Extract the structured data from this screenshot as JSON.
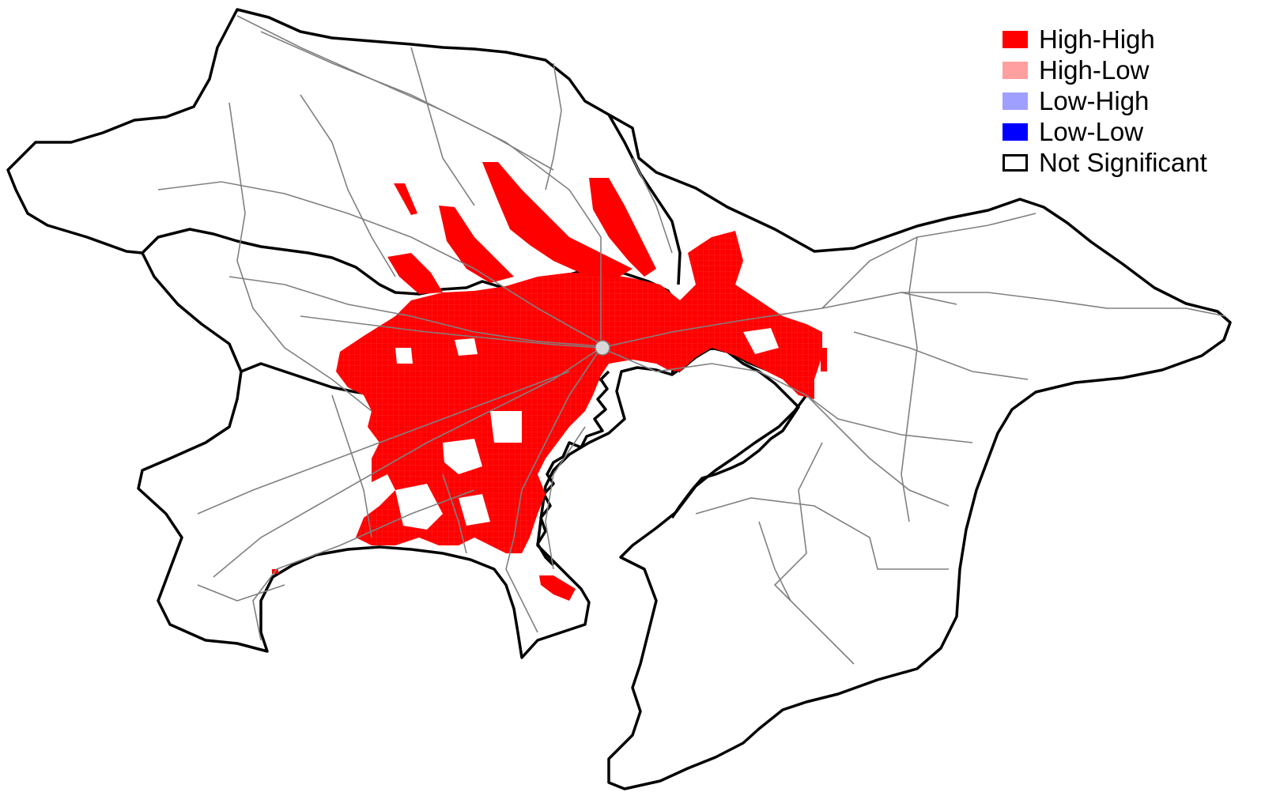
{
  "legend": {
    "items": [
      {
        "label": "High-High",
        "color": "#ff0000",
        "outline": false
      },
      {
        "label": "High-Low",
        "color": "#ff9f9f",
        "outline": false
      },
      {
        "label": "Low-High",
        "color": "#9f9fff",
        "outline": false
      },
      {
        "label": "Low-Low",
        "color": "#0000ff",
        "outline": false
      },
      {
        "label": "Not Significant",
        "color": "#ffffff",
        "outline": true
      }
    ]
  },
  "colors": {
    "boundary": "#000000",
    "railway": "#808080",
    "high_high": "#ff0000",
    "background": "#ffffff"
  }
}
